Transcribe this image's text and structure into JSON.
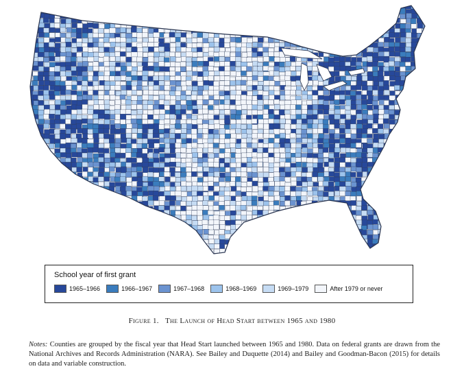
{
  "map": {
    "subject": "Counties of the contiguous United States",
    "colors": {
      "cat_1965_1966": "#27489a",
      "cat_1966_1967": "#3a7cbd",
      "cat_1967_1968": "#6b93d0",
      "cat_1968_1969": "#9cc3ec",
      "cat_1969_1979": "#c6dcf4",
      "cat_after_1979": "#f3f6fb",
      "county_border": "#2f3e5c",
      "water": "#ffffff"
    }
  },
  "legend": {
    "title": "School year of first grant",
    "items": [
      {
        "label": "1965–1966",
        "color": "#27489a"
      },
      {
        "label": "1966–1967",
        "color": "#3a7cbd"
      },
      {
        "label": "1967–1968",
        "color": "#6b93d0"
      },
      {
        "label": "1968–1969",
        "color": "#9cc3ec"
      },
      {
        "label": "1969–1979",
        "color": "#c6dcf4"
      },
      {
        "label": "After 1979 or never",
        "color": "#f3f6fb"
      }
    ]
  },
  "caption": {
    "number": "Figure 1.",
    "title": "The Launch of Head Start between 1965 and 1980"
  },
  "notes": {
    "label": "Notes:",
    "text": "Counties are grouped by the fiscal year that Head Start launched between 1965 and 1980. Data on federal grants are drawn from the National Archives and Records Administration (NARA). See Bailey and Duquette (2014) and Bailey and Goodman-Bacon (2015) for details on data and variable construction."
  }
}
